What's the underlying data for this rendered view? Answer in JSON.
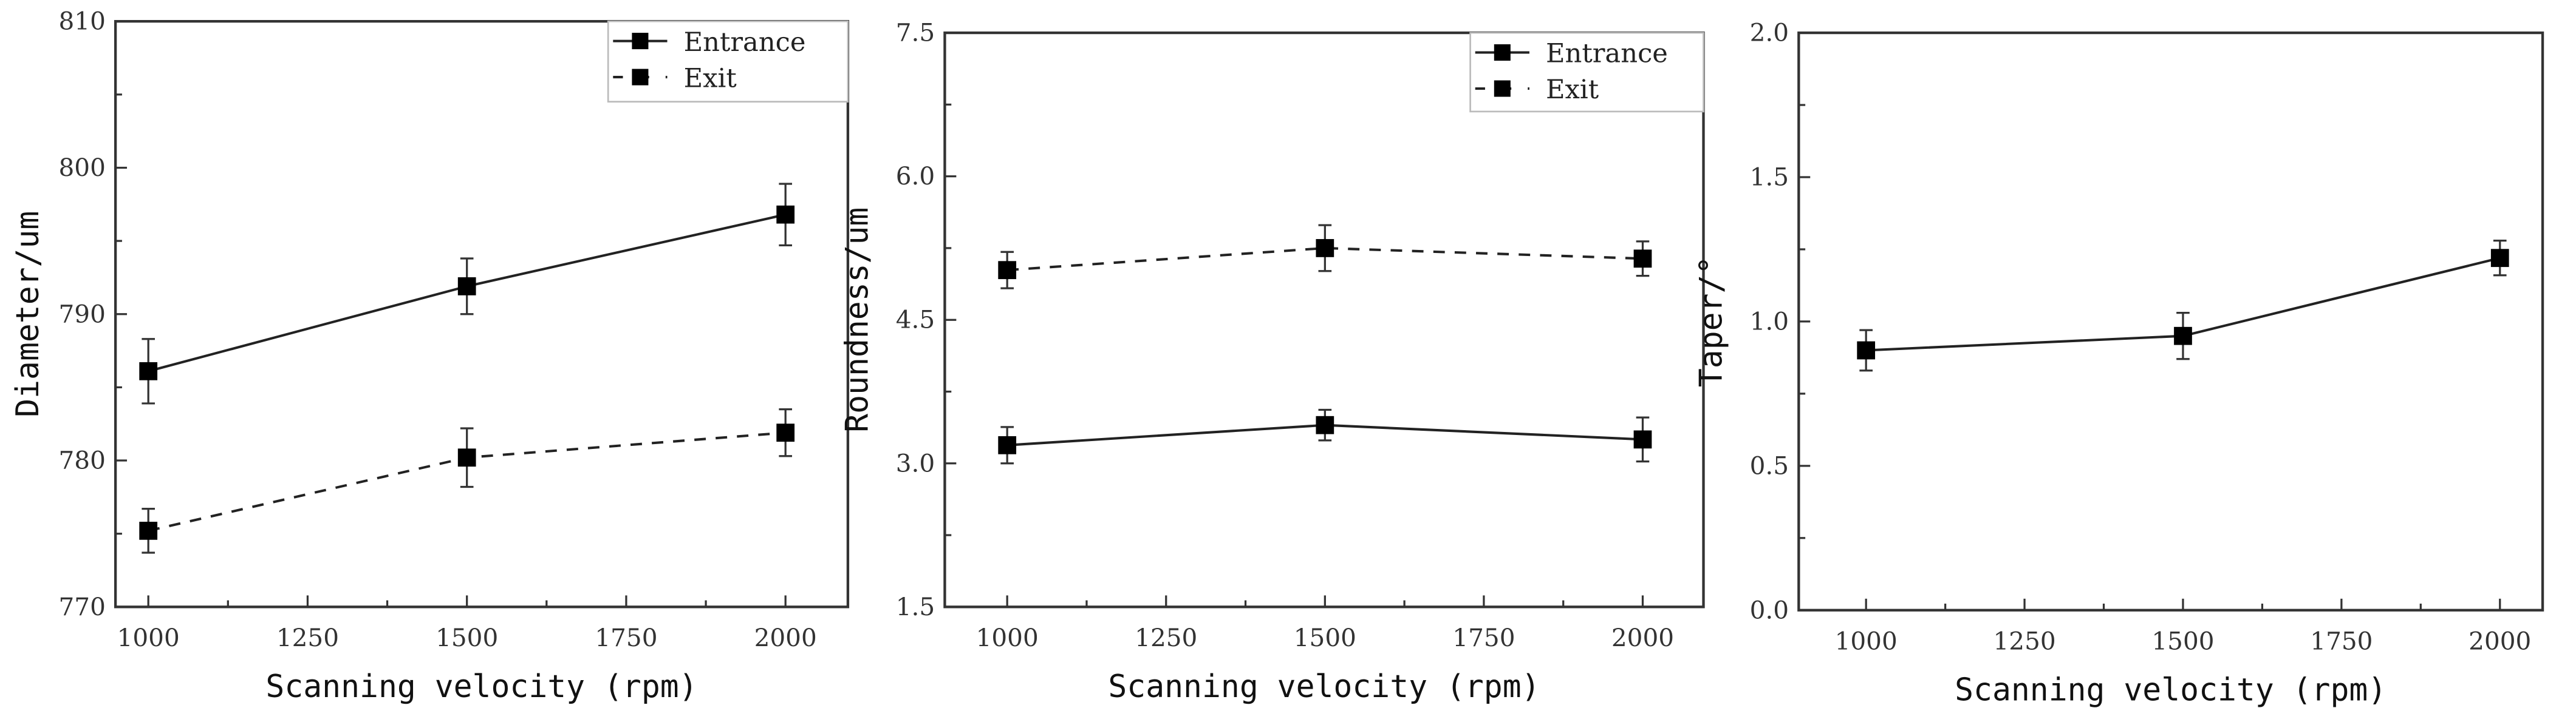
{
  "chart_data": [
    {
      "type": "line",
      "xlabel": "Scanning velocity (rpm)",
      "ylabel": "Diameter/um",
      "xlim": [
        950,
        2100
      ],
      "ylim": [
        770,
        810
      ],
      "xticks": [
        1000,
        1250,
        1500,
        1750,
        2000
      ],
      "yticks": [
        770,
        780,
        790,
        800,
        810
      ],
      "ytick_labels": [
        "770",
        "780",
        "790",
        "800",
        "810"
      ],
      "legend": "top-right",
      "x": [
        1000,
        1500,
        2000
      ],
      "series": [
        {
          "name": "Entrance",
          "style": "solid",
          "values": [
            786.1,
            791.9,
            796.8
          ],
          "errors": [
            2.2,
            1.9,
            2.1
          ]
        },
        {
          "name": "Exit",
          "style": "dashed",
          "values": [
            775.2,
            780.2,
            781.9
          ],
          "errors": [
            1.5,
            2.0,
            1.6
          ]
        }
      ]
    },
    {
      "type": "line",
      "xlabel": "Scanning velocity (rpm)",
      "ylabel": "Roundness/um",
      "xlim": [
        950,
        2100
      ],
      "ylim": [
        1.5,
        7.5
      ],
      "xticks": [
        1000,
        1250,
        1500,
        1750,
        2000
      ],
      "yticks": [
        1.5,
        3.0,
        4.5,
        6.0,
        7.5
      ],
      "ytick_labels": [
        "1.5",
        "3.0",
        "4.5",
        "6.0",
        "7.5"
      ],
      "legend": "top-right",
      "x": [
        1000,
        1500,
        2000
      ],
      "series": [
        {
          "name": "Entrance",
          "style": "solid",
          "values": [
            3.19,
            3.4,
            3.25
          ],
          "errors": [
            0.19,
            0.16,
            0.23
          ]
        },
        {
          "name": "Exit",
          "style": "dashed",
          "values": [
            5.02,
            5.25,
            5.14
          ],
          "errors": [
            0.19,
            0.24,
            0.18
          ]
        }
      ]
    },
    {
      "type": "line",
      "xlabel": "Scanning velocity (rpm)",
      "ylabel": "Taper/°",
      "xlim": [
        950,
        2100
      ],
      "ylim": [
        0.0,
        2.0
      ],
      "xticks": [
        1000,
        1250,
        1500,
        1750,
        2000
      ],
      "yticks": [
        0.0,
        0.5,
        1.0,
        1.5,
        2.0
      ],
      "ytick_labels": [
        "0.0",
        "0.5",
        "1.0",
        "1.5",
        "2.0"
      ],
      "legend": "none",
      "x": [
        1000,
        1500,
        2000
      ],
      "series": [
        {
          "name": "Taper",
          "style": "solid",
          "values": [
            0.9,
            0.95,
            1.22
          ],
          "errors": [
            0.07,
            0.08,
            0.06
          ]
        }
      ]
    }
  ]
}
